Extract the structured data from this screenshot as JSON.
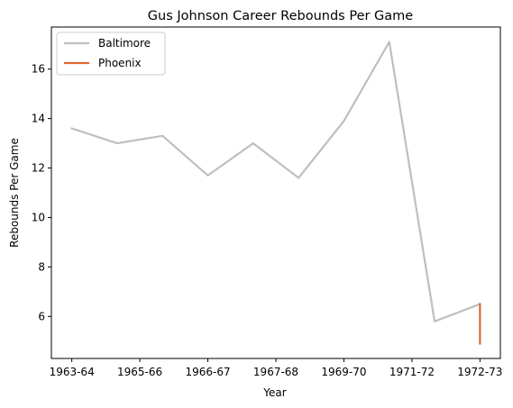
{
  "chart_data": {
    "type": "line",
    "title": "Gus Johnson  Career Rebounds Per Game",
    "xlabel": "Year",
    "ylabel": "Rebounds Per Game",
    "x_tick_labels": [
      "1963-64",
      "1965-66",
      "1966-67",
      "1967-68",
      "1969-70",
      "1971-72",
      "1972-73"
    ],
    "y_ticks": [
      6,
      8,
      10,
      12,
      14,
      16
    ],
    "xlim": [
      -0.45,
      9.45
    ],
    "ylim": [
      4.3,
      17.7
    ],
    "grid": false,
    "legend_position": "top-left",
    "series": [
      {
        "name": "Baltimore",
        "color": "#bfbfbf",
        "points": [
          {
            "x": 0,
            "y": 13.6
          },
          {
            "x": 1,
            "y": 13.0
          },
          {
            "x": 2,
            "y": 13.3
          },
          {
            "x": 3,
            "y": 11.7
          },
          {
            "x": 4,
            "y": 13.0
          },
          {
            "x": 5,
            "y": 11.6
          },
          {
            "x": 6,
            "y": 13.9
          },
          {
            "x": 7,
            "y": 17.1
          },
          {
            "x": 8,
            "y": 5.8
          },
          {
            "x": 9,
            "y": 6.5
          }
        ]
      },
      {
        "name": "Phoenix",
        "color": "#e06832",
        "points": [
          {
            "x": 9,
            "y": 6.5
          },
          {
            "x": 9,
            "y": 4.9
          }
        ]
      }
    ]
  }
}
